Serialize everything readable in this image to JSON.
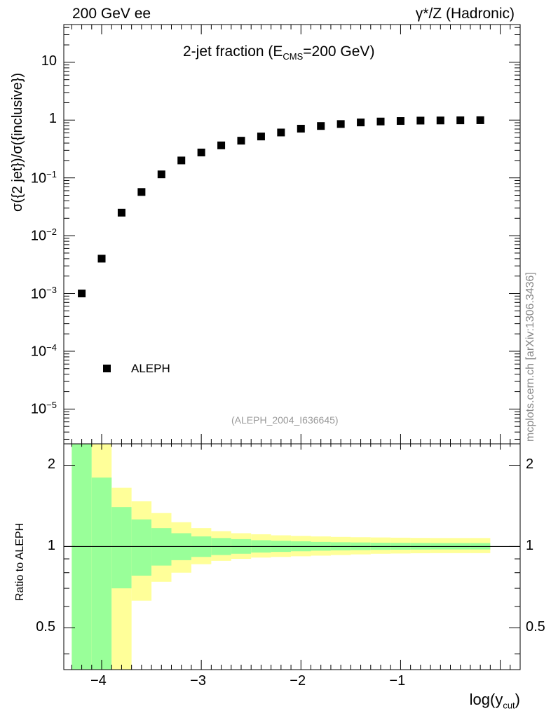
{
  "header": {
    "left": "200 GeV ee",
    "right": "γ*/Z (Hadronic)"
  },
  "title": {
    "main": "2-jet fraction (E",
    "sub": "CMS",
    "tail": "=200 GeV)"
  },
  "reference": "(ALEPH_2004_I636645)",
  "watermark": "mcplots.cern.ch [arXiv:1306.3436]",
  "legend": {
    "label": "ALEPH"
  },
  "axes": {
    "top_ylabel": "σ({2 jet})/σ({inclusive})",
    "bottom_ylabel": "Ratio to ALEPH",
    "xlabel_main": "log(y",
    "xlabel_sub": "cut",
    "xlabel_tail": ")",
    "top_yticks": [
      {
        "base": "10",
        "exp": "",
        "value": 10
      },
      {
        "base": "1",
        "exp": "",
        "value": 1
      },
      {
        "base": "10",
        "exp": "−1",
        "value": 0.1
      },
      {
        "base": "10",
        "exp": "−2",
        "value": 0.01
      },
      {
        "base": "10",
        "exp": "−3",
        "value": 0.001
      },
      {
        "base": "10",
        "exp": "−4",
        "value": 0.0001
      },
      {
        "base": "10",
        "exp": "−5",
        "value": 1e-05
      }
    ],
    "bottom_yticks": [
      {
        "label": "2",
        "value": 2
      },
      {
        "label": "1",
        "value": 1
      },
      {
        "label": "0.5",
        "value": 0.5
      }
    ],
    "xticks": [
      {
        "label": "−4",
        "value": -4
      },
      {
        "label": "−3",
        "value": -3
      },
      {
        "label": "−2",
        "value": -2
      },
      {
        "label": "−1",
        "value": -1
      }
    ]
  },
  "colors": {
    "band_inner": "#99ff99",
    "band_outer": "#ffff99",
    "marker": "#000000"
  },
  "chart_data": {
    "type": "scatter",
    "title": "2-jet fraction (E_CMS=200 GeV)",
    "xlabel": "log(y_cut)",
    "ylabel": "σ({2 jet})/σ({inclusive})",
    "xlim": [
      -4.38,
      0.2
    ],
    "ylim": [
      2.5e-06,
      45
    ],
    "yscale": "log",
    "series": [
      {
        "name": "ALEPH",
        "x": [
          -4.2,
          -4.0,
          -3.8,
          -3.6,
          -3.4,
          -3.2,
          -3.0,
          -2.8,
          -2.6,
          -2.4,
          -2.2,
          -2.0,
          -1.8,
          -1.6,
          -1.4,
          -1.2,
          -1.0,
          -0.8,
          -0.6,
          -0.4,
          -0.2
        ],
        "values": [
          0.001,
          0.004,
          0.025,
          0.057,
          0.115,
          0.2,
          0.275,
          0.365,
          0.44,
          0.52,
          0.61,
          0.71,
          0.79,
          0.855,
          0.91,
          0.945,
          0.965,
          0.98,
          0.985,
          0.99,
          0.995
        ]
      }
    ],
    "ratio_panel": {
      "ylabel": "Ratio to ALEPH",
      "ylim": [
        0.35,
        2.4
      ],
      "yscale": "log",
      "bin_edges": [
        -4.3,
        -4.1,
        -3.9,
        -3.7,
        -3.5,
        -3.3,
        -3.1,
        -2.9,
        -2.7,
        -2.5,
        -2.3,
        -2.1,
        -1.9,
        -1.7,
        -1.5,
        -1.3,
        -1.1,
        -0.9,
        -0.7,
        -0.5,
        -0.3,
        -0.1
      ],
      "inner_band": [
        [
          0.3,
          2.5
        ],
        [
          0.3,
          1.8
        ],
        [
          0.7,
          1.4
        ],
        [
          0.78,
          1.26
        ],
        [
          0.85,
          1.17
        ],
        [
          0.89,
          1.12
        ],
        [
          0.915,
          1.09
        ],
        [
          0.93,
          1.075
        ],
        [
          0.94,
          1.065
        ],
        [
          0.95,
          1.055
        ],
        [
          0.955,
          1.05
        ],
        [
          0.96,
          1.045
        ],
        [
          0.965,
          1.04
        ],
        [
          0.968,
          1.037
        ],
        [
          0.97,
          1.035
        ],
        [
          0.972,
          1.033
        ],
        [
          0.973,
          1.032
        ],
        [
          0.974,
          1.031
        ],
        [
          0.975,
          1.03
        ],
        [
          0.975,
          1.03
        ],
        [
          0.975,
          1.03
        ]
      ],
      "outer_band": [
        [
          0.3,
          2.5
        ],
        [
          0.3,
          2.5
        ],
        [
          0.3,
          1.65
        ],
        [
          0.63,
          1.47
        ],
        [
          0.74,
          1.33
        ],
        [
          0.8,
          1.23
        ],
        [
          0.86,
          1.17
        ],
        [
          0.885,
          1.14
        ],
        [
          0.9,
          1.12
        ],
        [
          0.91,
          1.11
        ],
        [
          0.915,
          1.1
        ],
        [
          0.92,
          1.095
        ],
        [
          0.925,
          1.09
        ],
        [
          0.93,
          1.085
        ],
        [
          0.935,
          1.082
        ],
        [
          0.94,
          1.08
        ],
        [
          0.942,
          1.078
        ],
        [
          0.944,
          1.076
        ],
        [
          0.945,
          1.075
        ],
        [
          0.945,
          1.075
        ],
        [
          0.945,
          1.075
        ]
      ],
      "reference_line": 1
    }
  }
}
